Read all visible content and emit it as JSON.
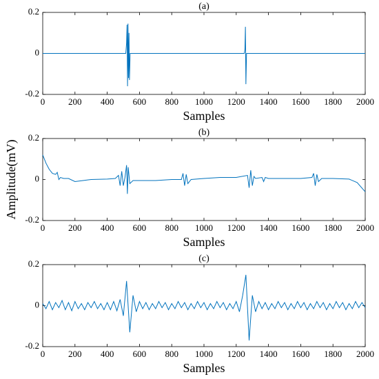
{
  "chart_data": [
    {
      "type": "line",
      "title": "(a)",
      "xlabel": "Samples",
      "xlim": [
        0,
        2000
      ],
      "xticks": [
        0,
        200,
        400,
        600,
        800,
        1000,
        1200,
        1400,
        1600,
        1800,
        2000
      ],
      "ylim": [
        -0.2,
        0.2
      ],
      "yticks": [
        -0.2,
        0,
        0.2
      ],
      "series": [
        {
          "color": "#0072bd",
          "x": [
            0,
            515,
            520,
            523,
            526,
            529,
            532,
            535,
            538,
            542,
            1250,
            1254,
            1257,
            1260,
            1264,
            2000
          ],
          "values": [
            0,
            0,
            0.05,
            0.14,
            -0.16,
            0.145,
            -0.12,
            0.1,
            -0.13,
            0,
            0,
            0.02,
            0.13,
            -0.15,
            0,
            0
          ]
        }
      ]
    },
    {
      "type": "line",
      "title": "(b)",
      "xlabel": "Samples",
      "ylabel": "Amplitude(mV)",
      "xlim": [
        0,
        2000
      ],
      "xticks": [
        0,
        200,
        400,
        600,
        800,
        1000,
        1200,
        1400,
        1600,
        1800,
        2000
      ],
      "ylim": [
        -0.2,
        0.2
      ],
      "yticks": [
        -0.2,
        0,
        0.2
      ],
      "series": [
        {
          "color": "#0072bd",
          "x": [
            0,
            20,
            40,
            60,
            80,
            90,
            100,
            110,
            130,
            160,
            200,
            250,
            300,
            400,
            450,
            470,
            480,
            490,
            500,
            510,
            520,
            525,
            530,
            540,
            560,
            600,
            700,
            800,
            860,
            870,
            880,
            890,
            900,
            920,
            1000,
            1100,
            1200,
            1270,
            1280,
            1290,
            1300,
            1310,
            1320,
            1360,
            1370,
            1380,
            1400,
            1500,
            1600,
            1670,
            1680,
            1690,
            1700,
            1710,
            1730,
            1800,
            1900,
            1950,
            2000
          ],
          "values": [
            0.12,
            0.08,
            0.05,
            0.03,
            0.025,
            0.035,
            0,
            0.01,
            0.005,
            0.005,
            -0.01,
            -0.005,
            0,
            0.002,
            0.005,
            0.02,
            -0.03,
            0.04,
            -0.03,
            0.01,
            0.07,
            -0.07,
            0.06,
            -0.02,
            -0.005,
            -0.005,
            -0.005,
            0,
            0,
            0.03,
            -0.03,
            0.025,
            -0.02,
            0,
            0.005,
            0.01,
            0.01,
            0.02,
            -0.04,
            0.045,
            -0.03,
            0.015,
            0.005,
            0.01,
            -0.01,
            0.01,
            0.005,
            0.005,
            0.005,
            0.01,
            0.03,
            -0.03,
            0.025,
            -0.01,
            0.005,
            0.005,
            0.002,
            -0.015,
            -0.06
          ]
        }
      ]
    },
    {
      "type": "line",
      "title": "(c)",
      "xlabel": "Samples",
      "xlim": [
        0,
        2000
      ],
      "xticks": [
        0,
        200,
        400,
        600,
        800,
        1000,
        1200,
        1400,
        1600,
        1800,
        2000
      ],
      "ylim": [
        -0.2,
        0.2
      ],
      "yticks": [
        -0.2,
        0,
        0.2
      ],
      "series": [
        {
          "color": "#0072bd",
          "x": [
            0,
            20,
            40,
            60,
            80,
            100,
            120,
            140,
            160,
            180,
            200,
            220,
            240,
            260,
            280,
            300,
            320,
            340,
            360,
            380,
            400,
            420,
            440,
            460,
            480,
            500,
            520,
            540,
            560,
            580,
            600,
            620,
            640,
            660,
            680,
            700,
            720,
            740,
            760,
            780,
            800,
            820,
            840,
            860,
            880,
            900,
            920,
            940,
            960,
            980,
            1000,
            1020,
            1040,
            1060,
            1080,
            1100,
            1120,
            1140,
            1160,
            1180,
            1200,
            1220,
            1240,
            1260,
            1280,
            1300,
            1320,
            1340,
            1360,
            1380,
            1400,
            1420,
            1440,
            1460,
            1480,
            1500,
            1520,
            1540,
            1560,
            1580,
            1600,
            1620,
            1640,
            1660,
            1680,
            1700,
            1720,
            1740,
            1760,
            1780,
            1800,
            1820,
            1840,
            1860,
            1880,
            1900,
            1920,
            1940,
            1960,
            1980,
            2000
          ],
          "values": [
            0.01,
            -0.015,
            0.02,
            -0.02,
            0.015,
            -0.01,
            0.025,
            -0.02,
            0.015,
            -0.025,
            0.02,
            -0.015,
            0.01,
            -0.02,
            0.015,
            -0.01,
            0.02,
            -0.015,
            0.01,
            -0.02,
            0.015,
            -0.02,
            0.02,
            -0.025,
            0.03,
            -0.05,
            0.12,
            -0.13,
            0.05,
            -0.03,
            0.02,
            -0.015,
            0.015,
            -0.02,
            0.01,
            -0.015,
            0.02,
            -0.01,
            0.015,
            -0.02,
            0.01,
            -0.015,
            0.02,
            -0.01,
            0.015,
            -0.02,
            0.01,
            -0.015,
            0.02,
            -0.01,
            0.015,
            -0.02,
            0.01,
            -0.015,
            0.02,
            -0.01,
            0.015,
            -0.02,
            0.01,
            -0.015,
            0.02,
            -0.03,
            0.05,
            0.15,
            -0.17,
            0.05,
            -0.03,
            0.02,
            -0.015,
            0.015,
            -0.02,
            0.01,
            -0.015,
            0.02,
            -0.01,
            0.015,
            -0.02,
            0.01,
            -0.015,
            0.02,
            -0.01,
            0.015,
            -0.02,
            0.01,
            -0.015,
            0.02,
            -0.01,
            0.015,
            -0.02,
            0.01,
            -0.015,
            0.02,
            -0.01,
            0.015,
            -0.02,
            0.01,
            -0.015,
            0.02,
            -0.01,
            0.015,
            -0.01
          ]
        }
      ]
    }
  ]
}
